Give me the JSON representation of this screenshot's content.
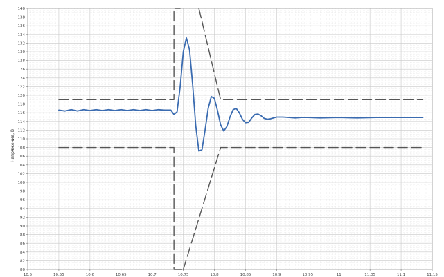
{
  "chart_data": {
    "type": "line",
    "title": "",
    "xlabel": "",
    "ylabel": "Напряжение, В",
    "xlim": [
      10.5,
      11.15
    ],
    "ylim": [
      80,
      140
    ],
    "x_ticks": [
      "10,5",
      "10,55",
      "10,6",
      "10,65",
      "10,7",
      "10,75",
      "10,8",
      "10,85",
      "10,9",
      "10,95",
      "11",
      "11,05",
      "11,1",
      "11,15"
    ],
    "y_ticks": [
      "80",
      "82",
      "84",
      "86",
      "88",
      "90",
      "92",
      "94",
      "96",
      "98",
      "100",
      "102",
      "104",
      "106",
      "108",
      "110",
      "112",
      "114",
      "116",
      "118",
      "120",
      "122",
      "124",
      "126",
      "128",
      "130",
      "132",
      "134",
      "136",
      "138",
      "140"
    ],
    "grid": true,
    "series": [
      {
        "color": "#3a6bb0",
        "style": "solid",
        "x": [
          10.55,
          10.56,
          10.57,
          10.58,
          10.59,
          10.6,
          10.61,
          10.62,
          10.63,
          10.64,
          10.65,
          10.66,
          10.67,
          10.68,
          10.69,
          10.7,
          10.71,
          10.72,
          10.73,
          10.735,
          10.74,
          10.745,
          10.75,
          10.755,
          10.76,
          10.765,
          10.77,
          10.775,
          10.78,
          10.785,
          10.79,
          10.795,
          10.8,
          10.805,
          10.81,
          10.815,
          10.82,
          10.825,
          10.83,
          10.835,
          10.84,
          10.845,
          10.85,
          10.855,
          10.86,
          10.865,
          10.87,
          10.875,
          10.88,
          10.885,
          10.89,
          10.9,
          10.91,
          10.92,
          10.93,
          10.94,
          10.95,
          10.97,
          11.0,
          11.03,
          11.06,
          11.09,
          11.12,
          11.135
        ],
        "values": [
          116.6,
          116.4,
          116.7,
          116.4,
          116.7,
          116.5,
          116.7,
          116.5,
          116.7,
          116.5,
          116.7,
          116.5,
          116.7,
          116.5,
          116.7,
          116.5,
          116.7,
          116.6,
          116.6,
          115.6,
          116.2,
          122.0,
          130.0,
          133.2,
          130.5,
          122.5,
          113.0,
          107.2,
          107.5,
          112.0,
          117.0,
          119.7,
          119.3,
          116.5,
          113.2,
          111.8,
          112.8,
          115.0,
          116.7,
          117.0,
          116.0,
          114.5,
          113.7,
          113.8,
          114.8,
          115.6,
          115.7,
          115.3,
          114.7,
          114.5,
          114.6,
          115.0,
          115.0,
          114.9,
          114.8,
          114.9,
          114.9,
          114.8,
          114.9,
          114.8,
          114.9,
          114.9,
          114.9,
          114.9
        ]
      },
      {
        "color": "#555555",
        "style": "dashed",
        "x": [
          10.55,
          10.735,
          10.735,
          10.735,
          10.745
        ],
        "values": [
          119,
          119,
          119,
          140,
          140
        ]
      },
      {
        "color": "#555555",
        "style": "dashed",
        "x": [
          10.775,
          10.81,
          11.135
        ],
        "values": [
          140,
          119,
          119
        ]
      },
      {
        "color": "#555555",
        "style": "dashed",
        "x": [
          10.55,
          10.735,
          10.735,
          10.735,
          10.75
        ],
        "values": [
          108,
          108,
          108,
          80,
          80
        ]
      },
      {
        "color": "#555555",
        "style": "dashed",
        "x": [
          10.75,
          10.81,
          11.135
        ],
        "values": [
          80,
          108,
          108
        ]
      }
    ]
  }
}
